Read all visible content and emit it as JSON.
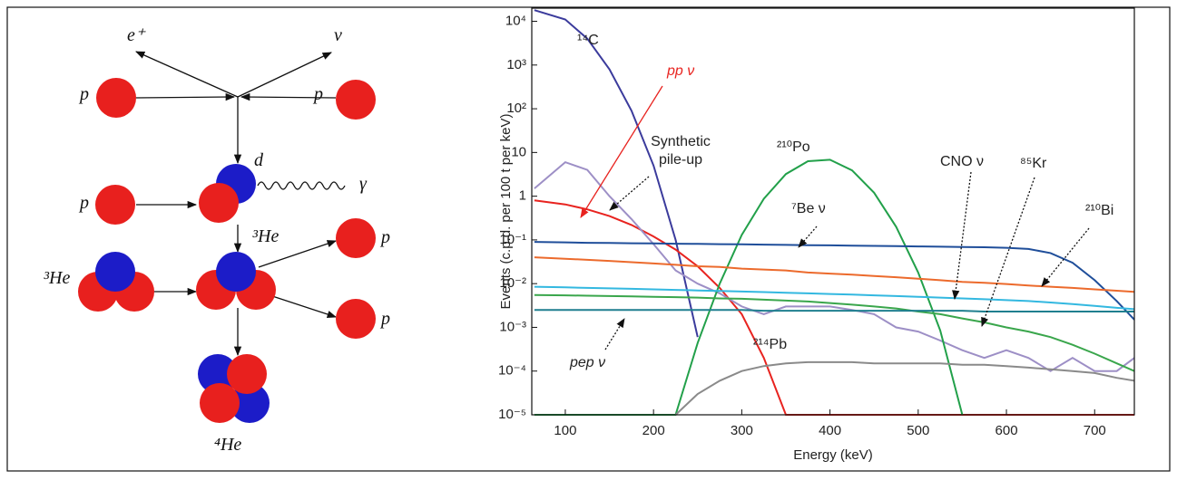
{
  "diagram": {
    "labels": [
      "e⁺",
      "ν",
      "p",
      "p",
      "d",
      "γ",
      "p",
      "³He",
      "³He",
      "p",
      "p",
      "⁴He"
    ]
  },
  "chart_data": {
    "type": "line",
    "x_label": "Energy (keV)",
    "y_label": "Events (c.p.d. per 100 t per keV)",
    "log_y": true,
    "xlim": [
      62,
      745
    ],
    "xticks": [
      100,
      200,
      300,
      400,
      500,
      600,
      700
    ],
    "ylim": [
      1e-05,
      20000
    ],
    "yticks": [
      {
        "value": 1e-05,
        "label": "10⁻⁵"
      },
      {
        "value": 0.0001,
        "label": "10⁻⁴"
      },
      {
        "value": 0.001,
        "label": "10⁻³"
      },
      {
        "value": 0.01,
        "label": "10⁻²"
      },
      {
        "value": 0.1,
        "label": "10⁻¹"
      },
      1,
      10,
      {
        "value": 100,
        "label": "10²"
      },
      {
        "value": 1000,
        "label": "10³"
      },
      {
        "value": 10000,
        "label": "10⁴"
      }
    ],
    "x": [
      65,
      100,
      125,
      150,
      175,
      200,
      225,
      250,
      275,
      300,
      325,
      350,
      375,
      400,
      425,
      450,
      475,
      500,
      525,
      550,
      575,
      600,
      625,
      650,
      675,
      700,
      725,
      745
    ],
    "series": [
      {
        "name": "¹⁴C",
        "color": "#3b3b9c",
        "values": [
          18000,
          11000,
          4000,
          800,
          90,
          5,
          0.1,
          0.0006,
          null,
          null,
          null,
          null,
          null,
          null,
          null,
          null,
          null,
          null,
          null,
          null,
          null,
          null,
          null,
          null,
          null,
          null,
          null,
          null
        ]
      },
      {
        "name": "pp ν",
        "color": "#e8231f",
        "values": [
          0.8,
          0.65,
          0.5,
          0.35,
          0.22,
          0.12,
          0.06,
          0.025,
          0.008,
          0.002,
          0.0002,
          1e-05,
          1e-05,
          1e-05,
          1e-05,
          1e-05,
          1e-05,
          1e-05,
          1e-05,
          1e-05,
          1e-05,
          1e-05,
          1e-05,
          1e-05,
          1e-05,
          1e-05,
          1e-05,
          1e-05
        ]
      },
      {
        "name": "Synthetic pile-up",
        "color": "#9d8fc6",
        "values": [
          1.5,
          6,
          4,
          1,
          0.3,
          0.08,
          0.02,
          0.01,
          0.006,
          0.003,
          0.002,
          0.003,
          0.003,
          0.003,
          0.0025,
          0.002,
          0.001,
          0.0008,
          0.0005,
          0.0003,
          0.0002,
          0.0003,
          0.0002,
          0.0001,
          0.0002,
          0.0001,
          0.0001,
          0.0002
        ]
      },
      {
        "name": "²¹⁰Po",
        "color": "#22a04a",
        "values": [
          1e-05,
          1e-05,
          1e-05,
          1e-05,
          1e-05,
          1e-05,
          1e-05,
          0.00044,
          0.01,
          0.13,
          0.87,
          3.2,
          6.3,
          6.8,
          3.9,
          1.2,
          0.2,
          0.018,
          0.00085,
          1e-05,
          null,
          null,
          null,
          null,
          null,
          null,
          null,
          null
        ]
      },
      {
        "name": "⁷Be ν",
        "color": "#1f4e9a",
        "values": [
          0.09,
          0.088,
          0.086,
          0.085,
          0.084,
          0.083,
          0.082,
          0.081,
          0.08,
          0.079,
          0.078,
          0.077,
          0.076,
          0.075,
          0.074,
          0.073,
          0.072,
          0.071,
          0.07,
          0.069,
          0.068,
          0.066,
          0.062,
          0.05,
          0.03,
          0.012,
          0.004,
          0.0015
        ]
      },
      {
        "name": "²¹⁰Bi",
        "color": "#ec6a2c",
        "values": [
          0.04,
          0.037,
          0.035,
          0.033,
          0.031,
          0.029,
          0.027,
          0.025,
          0.024,
          0.022,
          0.021,
          0.02,
          0.018,
          0.017,
          0.016,
          0.015,
          0.014,
          0.013,
          0.012,
          0.011,
          0.0105,
          0.0098,
          0.0091,
          0.0085,
          0.008,
          0.0074,
          0.0069,
          0.0065
        ]
      },
      {
        "name": "CNO ν",
        "color": "#33b8e0",
        "values": [
          0.0085,
          0.0082,
          0.008,
          0.0078,
          0.0076,
          0.0074,
          0.0072,
          0.007,
          0.0068,
          0.0066,
          0.0064,
          0.0062,
          0.006,
          0.0058,
          0.0056,
          0.0054,
          0.0052,
          0.005,
          0.0048,
          0.0046,
          0.0044,
          0.0042,
          0.004,
          0.0037,
          0.0034,
          0.0031,
          0.0028,
          0.0026
        ]
      },
      {
        "name": "⁸⁵Kr",
        "color": "#3aa64c",
        "values": [
          0.0055,
          0.0054,
          0.0053,
          0.0052,
          0.0051,
          0.005,
          0.0049,
          0.0048,
          0.0046,
          0.0045,
          0.0043,
          0.0041,
          0.0039,
          0.0036,
          0.0033,
          0.003,
          0.0027,
          0.0023,
          0.002,
          0.0016,
          0.0013,
          0.001,
          0.0008,
          0.0006,
          0.0004,
          0.00025,
          0.00015,
          0.0001
        ]
      },
      {
        "name": "pep ν",
        "color": "#1f7f8f",
        "values": [
          0.0025,
          0.0025,
          0.0025,
          0.0025,
          0.0025,
          0.0025,
          0.0025,
          0.0025,
          0.0025,
          0.0025,
          0.0024,
          0.0024,
          0.0024,
          0.0024,
          0.0024,
          0.0024,
          0.0024,
          0.0024,
          0.0024,
          0.0024,
          0.0023,
          0.0023,
          0.0023,
          0.0023,
          0.0023,
          0.0023,
          0.0023,
          0.0023
        ]
      },
      {
        "name": "²¹⁴Pb",
        "color": "#8a8a8a",
        "values": [
          null,
          null,
          null,
          null,
          null,
          null,
          1e-05,
          3e-05,
          6e-05,
          0.0001,
          0.00013,
          0.00015,
          0.00016,
          0.00016,
          0.00016,
          0.00015,
          0.00015,
          0.00015,
          0.00015,
          0.00014,
          0.00014,
          0.00013,
          0.00012,
          0.00011,
          0.0001,
          9e-05,
          7e-05,
          6e-05
        ]
      }
    ]
  }
}
